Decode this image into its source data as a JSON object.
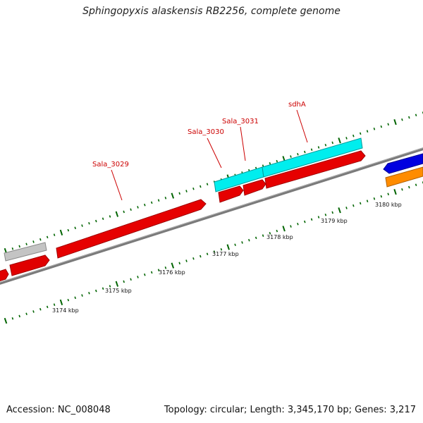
{
  "header": {
    "title": "Sphingopyxis alaskensis RB2256, complete genome"
  },
  "footer": {
    "accession": "Accession: NC_008048",
    "summary": "Topology: circular; Length: 3,345,170 bp; Genes: 3,217"
  },
  "colors": {
    "forward_cds": "#ff0000",
    "reverse_cds": "#0000ff",
    "highlight": "#00ffff",
    "other": "#ff8c00",
    "rna": "#c0c0c0",
    "ticks": "#006400",
    "labels": "#cc0000",
    "backbone": "#808080"
  },
  "scale_labels": [
    "3174 kbp",
    "3175 kbp",
    "3176 kbp",
    "3177 kbp",
    "3178 kbp",
    "3179 kbp",
    "3180 kbp"
  ],
  "gene_labels": [
    "Sala_3029",
    "Sala_3030",
    "Sala_3031",
    "sdhA"
  ]
}
